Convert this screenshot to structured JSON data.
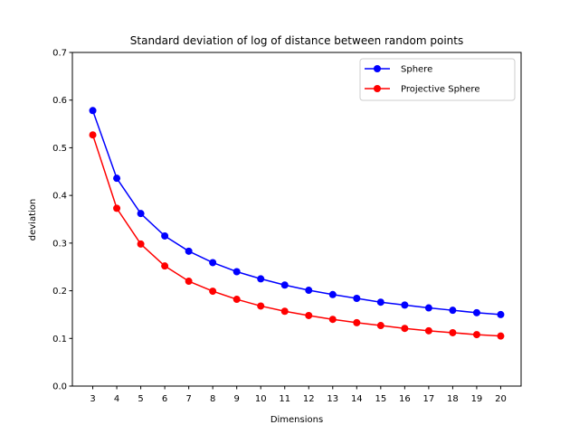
{
  "chart_data": {
    "type": "line",
    "title": "Standard deviation of log of distance between random points",
    "xlabel": "Dimensions",
    "ylabel": "deviation",
    "x": [
      3,
      4,
      5,
      6,
      7,
      8,
      9,
      10,
      11,
      12,
      13,
      14,
      15,
      16,
      17,
      18,
      19,
      20
    ],
    "xticks": [
      "3",
      "4",
      "5",
      "6",
      "7",
      "8",
      "9",
      "10",
      "11",
      "12",
      "13",
      "14",
      "15",
      "16",
      "17",
      "18",
      "19",
      "20"
    ],
    "ylim": [
      0,
      0.7
    ],
    "yticks": [
      "0.0",
      "0.1",
      "0.2",
      "0.3",
      "0.4",
      "0.5",
      "0.6",
      "0.7"
    ],
    "grid": false,
    "legend_position": "top-right",
    "series": [
      {
        "name": "Sphere",
        "color": "#0000ff",
        "marker": "circle",
        "values": [
          0.578,
          0.436,
          0.362,
          0.315,
          0.283,
          0.259,
          0.24,
          0.225,
          0.212,
          0.201,
          0.192,
          0.184,
          0.176,
          0.17,
          0.164,
          0.159,
          0.154,
          0.15
        ]
      },
      {
        "name": "Projective Sphere",
        "color": "#ff0000",
        "marker": "circle",
        "values": [
          0.527,
          0.373,
          0.298,
          0.252,
          0.22,
          0.199,
          0.182,
          0.168,
          0.157,
          0.148,
          0.14,
          0.133,
          0.127,
          0.121,
          0.116,
          0.112,
          0.108,
          0.105
        ]
      }
    ]
  }
}
